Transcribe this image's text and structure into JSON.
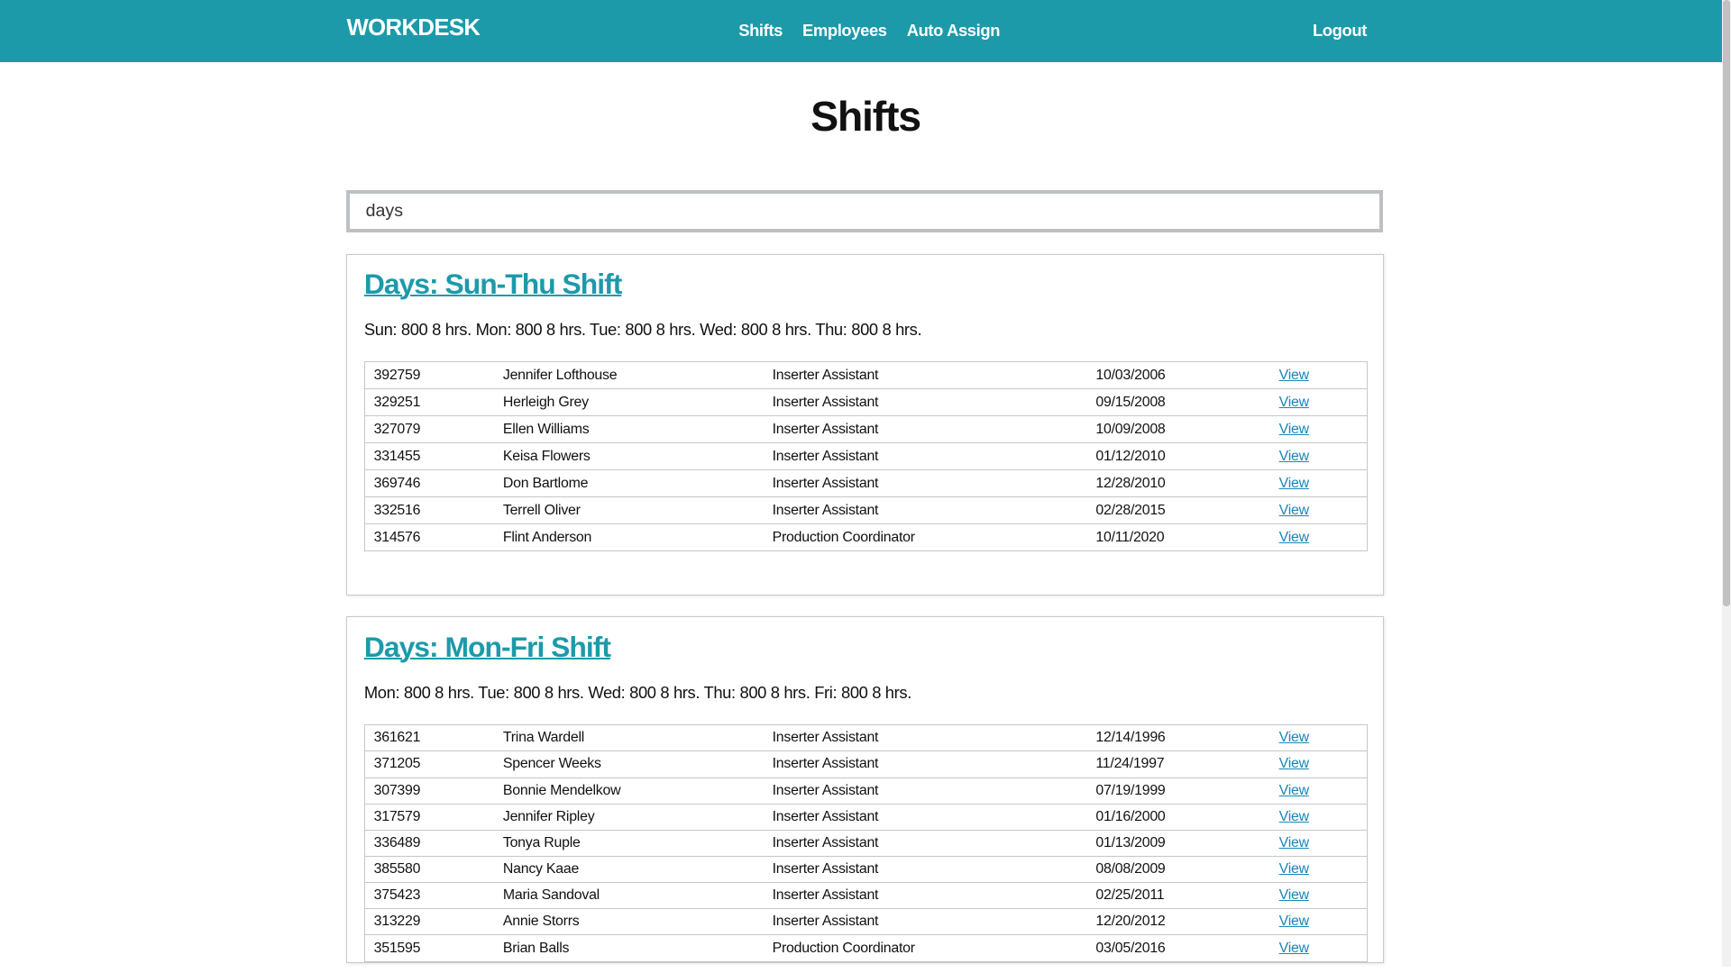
{
  "nav": {
    "brand": "WORKDESK",
    "links": [
      "Shifts",
      "Employees",
      "Auto Assign"
    ],
    "logout": "Logout"
  },
  "colors": {
    "accent": "#1c9aa9",
    "link": "#1a86b8"
  },
  "page_title": "Shifts",
  "search": {
    "value": "days"
  },
  "shifts": [
    {
      "title": "Days: Sun-Thu Shift",
      "schedule": "Sun: 800 8 hrs. Mon: 800 8 hrs. Tue: 800 8 hrs. Wed: 800 8 hrs. Thu: 800 8 hrs.",
      "rows": [
        [
          "392759",
          "Jennifer Lofthouse",
          "Inserter Assistant",
          "10/03/2006",
          "View"
        ],
        [
          "329251",
          "Herleigh Grey",
          "Inserter Assistant",
          "09/15/2008",
          "View"
        ],
        [
          "327079",
          "Ellen Williams",
          "Inserter Assistant",
          "10/09/2008",
          "View"
        ],
        [
          "331455",
          "Keisa Flowers",
          "Inserter Assistant",
          "01/12/2010",
          "View"
        ],
        [
          "369746",
          "Don Bartlome",
          "Inserter Assistant",
          "12/28/2010",
          "View"
        ],
        [
          "332516",
          "Terrell Oliver",
          "Inserter Assistant",
          "02/28/2015",
          "View"
        ],
        [
          "314576",
          "Flint Anderson",
          "Production Coordinator",
          "10/11/2020",
          "View"
        ]
      ]
    },
    {
      "title": "Days: Mon-Fri Shift",
      "schedule": "Mon: 800 8 hrs. Tue: 800 8 hrs. Wed: 800 8 hrs. Thu: 800 8 hrs. Fri: 800 8 hrs.",
      "rows": [
        [
          "361621",
          "Trina Wardell",
          "Inserter Assistant",
          "12/14/1996",
          "View"
        ],
        [
          "371205",
          "Spencer Weeks",
          "Inserter Assistant",
          "11/24/1997",
          "View"
        ],
        [
          "307399",
          "Bonnie Mendelkow",
          "Inserter Assistant",
          "07/19/1999",
          "View"
        ],
        [
          "317579",
          "Jennifer Ripley",
          "Inserter Assistant",
          "01/16/2000",
          "View"
        ],
        [
          "336489",
          "Tonya Ruple",
          "Inserter Assistant",
          "01/13/2009",
          "View"
        ],
        [
          "385580",
          "Nancy Kaae",
          "Inserter Assistant",
          "08/08/2009",
          "View"
        ],
        [
          "375423",
          "Maria Sandoval",
          "Inserter Assistant",
          "02/25/2011",
          "View"
        ],
        [
          "313229",
          "Annie Storrs",
          "Inserter Assistant",
          "12/20/2012",
          "View"
        ],
        [
          "351595",
          "Brian Balls",
          "Production Coordinator",
          "03/05/2016",
          "View"
        ]
      ]
    }
  ]
}
